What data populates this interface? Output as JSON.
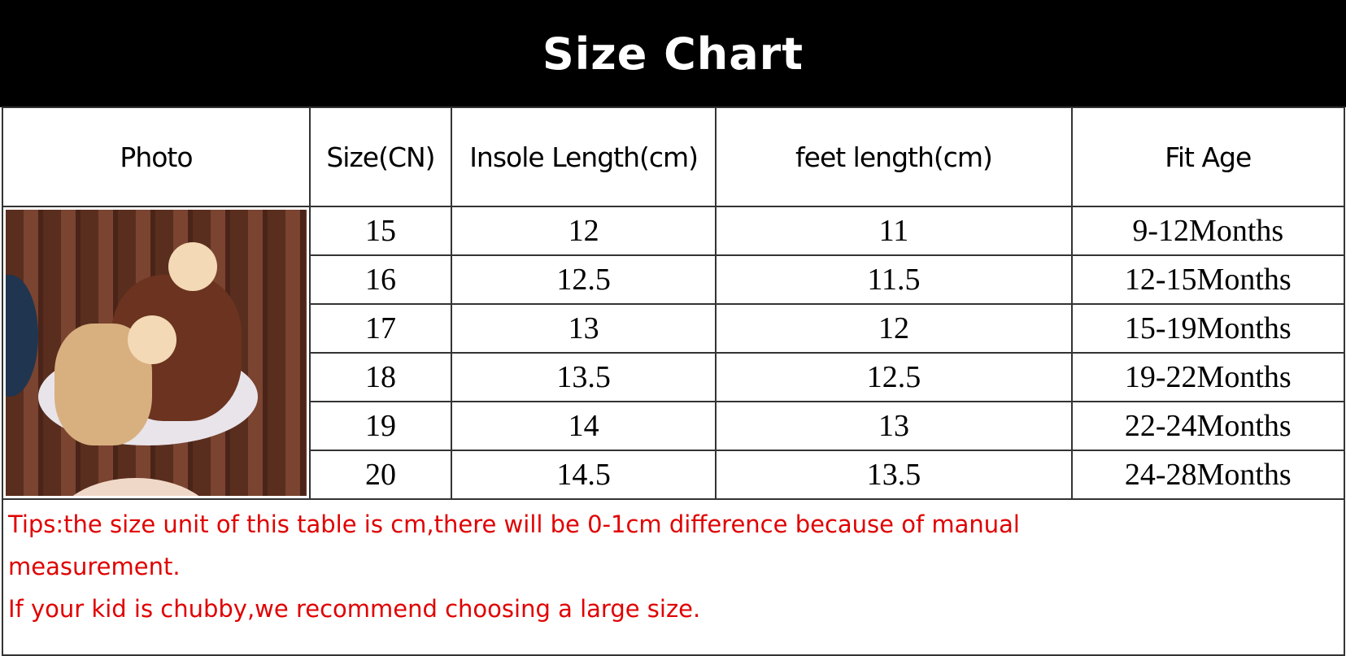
{
  "title": "Size Chart",
  "headers": [
    "Photo",
    "Size(CN)",
    "Insole Length(cm)",
    "feet length(cm)",
    "Fit Age"
  ],
  "rows": [
    [
      "15",
      "12",
      "11",
      "9-12Months"
    ],
    [
      "16",
      "12.5",
      "11.5",
      "12-15Months"
    ],
    [
      "17",
      "13",
      "12",
      "15-19Months"
    ],
    [
      "18",
      "13.5",
      "12.5",
      "19-22Months"
    ],
    [
      "19",
      "14",
      "13",
      "22-24Months"
    ],
    [
      "20",
      "14.5",
      "13.5",
      "24-28Months"
    ]
  ],
  "tips": {
    "line1": "Tips:the size unit of  this table is cm,there will be 0-1cm difference because of manual measurement.",
    "line2": "If your kid is chubby,we recommend choosing a large size."
  },
  "colors": {
    "banner": "#000000",
    "tips_text": "#e00000"
  }
}
